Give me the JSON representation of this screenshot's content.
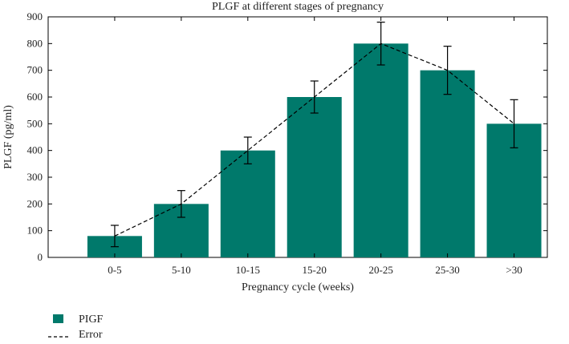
{
  "chart_data": {
    "type": "bar",
    "title": "PLGF at different stages of pregnancy",
    "xlabel": "Pregnancy cycle (weeks)",
    "ylabel": "PLGF (pg/ml)",
    "ylim": [
      0,
      900
    ],
    "yticks": [
      0,
      100,
      200,
      300,
      400,
      500,
      600,
      700,
      800,
      900
    ],
    "categories": [
      "0-5",
      "5-10",
      "10-15",
      "15-20",
      "20-25",
      "25-30",
      ">30"
    ],
    "series": [
      {
        "name": "PIGF",
        "type": "bar",
        "color": "#00796b",
        "values": [
          80,
          200,
          400,
          600,
          800,
          700,
          500
        ]
      },
      {
        "name": "Error",
        "type": "line",
        "style": "dashed",
        "color": "#000000",
        "values": [
          80,
          200,
          400,
          600,
          800,
          700,
          500
        ]
      }
    ],
    "error_bars": {
      "lower": [
        40,
        150,
        350,
        540,
        720,
        610,
        410
      ],
      "upper": [
        120,
        250,
        450,
        660,
        880,
        790,
        590
      ]
    },
    "grid": false,
    "legend_position": "bottom-left"
  }
}
